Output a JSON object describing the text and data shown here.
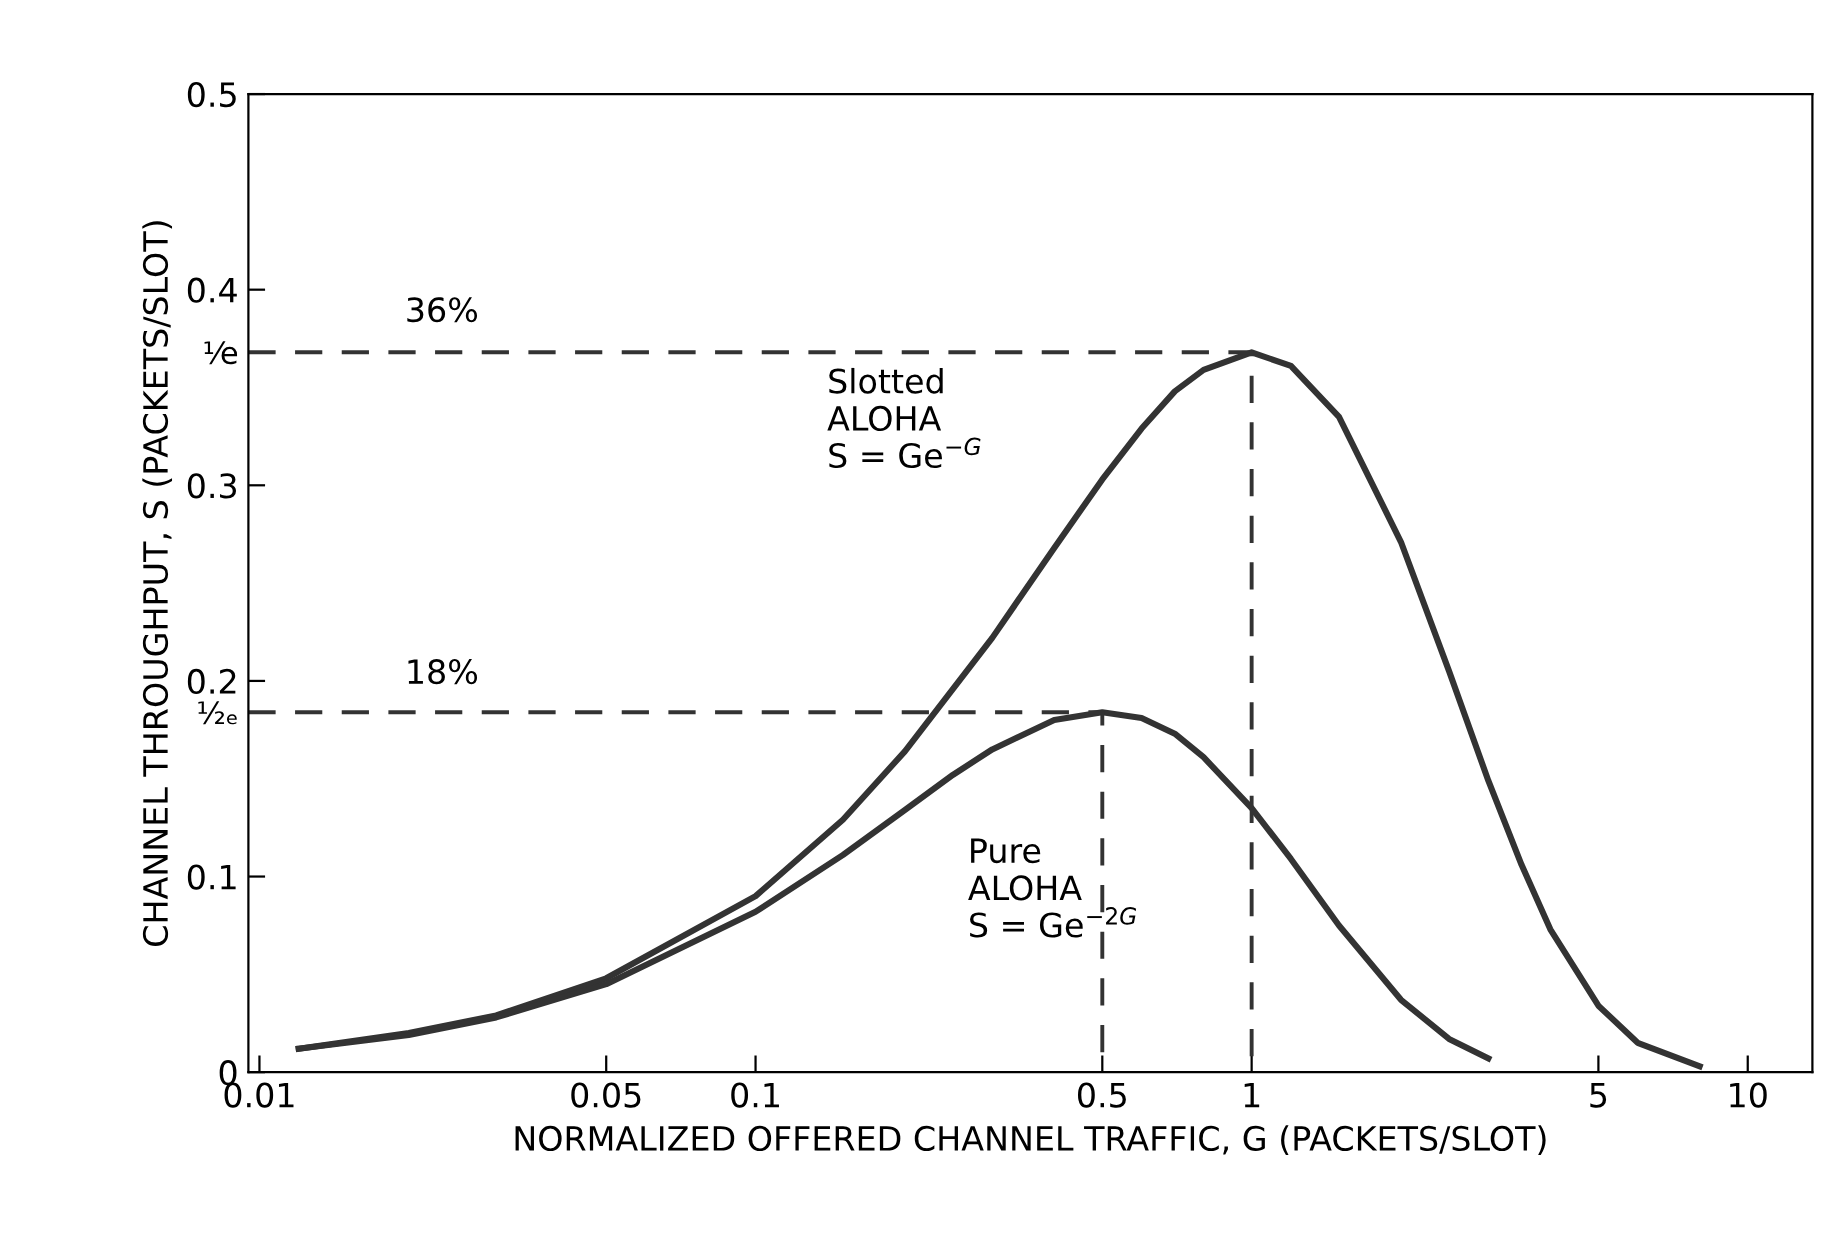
{
  "chart_data": {
    "type": "line",
    "xlabel": "NORMALIZED OFFERED CHANNEL TRAFFIC, G (PACKETS/SLOT)",
    "ylabel": "CHANNEL THROUGHPUT, S (PACKETS/SLOT)",
    "log": "x",
    "xlim": [
      0.0095,
      13.5
    ],
    "xticks": [
      0.01,
      0.05,
      0.1,
      0.5,
      1,
      5,
      10
    ],
    "ylim": [
      0,
      0.5
    ],
    "yticks": [
      0,
      0.1,
      0.2,
      0.3,
      0.4,
      0.5,
      {
        "value": 0.368,
        "label": "¹⁄e"
      },
      {
        "value": 0.184,
        "label": "¹⁄₂ₑ"
      }
    ],
    "grid": false,
    "marker": "none",
    "series": [
      {
        "color": "#333333",
        "line_style": "solid",
        "x": [
          0.012,
          0.02,
          0.03,
          0.05,
          0.1,
          0.15,
          0.2,
          0.3,
          0.4,
          0.5,
          0.6,
          0.7,
          0.8,
          1,
          1.2,
          1.5,
          2,
          2.5,
          3,
          3.5,
          4,
          5,
          6,
          8
        ],
        "values": [
          0.012,
          0.02,
          0.029,
          0.048,
          0.09,
          0.129,
          0.164,
          0.222,
          0.268,
          0.303,
          0.329,
          0.348,
          0.359,
          0.368,
          0.361,
          0.335,
          0.271,
          0.205,
          0.149,
          0.106,
          0.073,
          0.034,
          0.015,
          0.003
        ]
      },
      {
        "color": "#333333",
        "line_style": "solid",
        "x": [
          0.012,
          0.02,
          0.03,
          0.05,
          0.1,
          0.15,
          0.2,
          0.25,
          0.3,
          0.4,
          0.5,
          0.6,
          0.7,
          0.8,
          1,
          1.2,
          1.5,
          2,
          2.5,
          3
        ],
        "values": [
          0.012,
          0.019,
          0.028,
          0.045,
          0.082,
          0.111,
          0.134,
          0.152,
          0.165,
          0.18,
          0.184,
          0.181,
          0.173,
          0.161,
          0.135,
          0.109,
          0.075,
          0.037,
          0.017,
          0.007
        ]
      },
      {
        "color": "#333333",
        "line_style": "dashed",
        "x": [
          0.0095,
          1,
          1
        ],
        "values": [
          0.368,
          0.368,
          0
        ]
      },
      {
        "color": "#333333",
        "line_style": "dashed",
        "x": [
          0.0095,
          0.5,
          0.5
        ],
        "values": [
          0.184,
          0.184,
          0
        ]
      }
    ],
    "annotations": [
      "36%",
      "18%",
      "Slotted\nALOHA\nS = Ge$^{−G}$",
      "Pure\nALOHA\nS = Ge$^{−2G}$"
    ]
  }
}
